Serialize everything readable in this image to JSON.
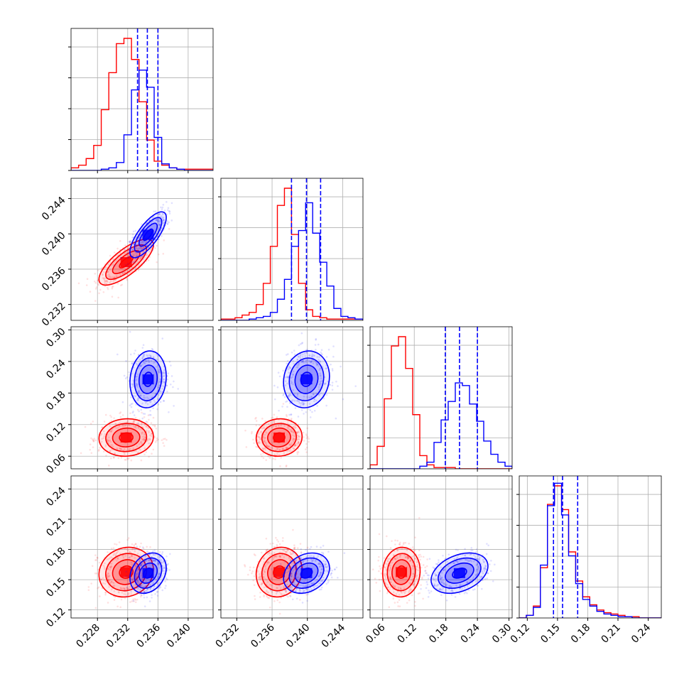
{
  "colors": {
    "series_a": "#ff0000",
    "series_b": "#0000ff"
  },
  "chart_data": {
    "type": "corner",
    "grid": true,
    "legend": "none",
    "parameters": [
      {
        "id": "p0",
        "range": [
          0.2245,
          0.2433
        ],
        "ticks": [
          0.228,
          0.232,
          0.236,
          0.24
        ],
        "tick_labels": [
          "0.228",
          "0.232",
          "0.236",
          "0.240"
        ],
        "tick_decimals": 3
      },
      {
        "id": "p1",
        "range": [
          0.2302,
          0.2463
        ],
        "ticks": [
          0.232,
          0.236,
          0.24,
          0.244
        ],
        "tick_labels": [
          "0.232",
          "0.236",
          "0.240",
          "0.244"
        ],
        "tick_decimals": 3
      },
      {
        "id": "p2",
        "range": [
          0.036,
          0.306
        ],
        "ticks": [
          0.06,
          0.12,
          0.18,
          0.24,
          0.3
        ],
        "tick_labels": [
          "0.06",
          "0.12",
          "0.18",
          "0.24",
          "0.30"
        ],
        "tick_decimals": 2
      },
      {
        "id": "p3",
        "range": [
          0.112,
          0.253
        ],
        "ticks": [
          0.12,
          0.15,
          0.18,
          0.21,
          0.24
        ],
        "tick_labels": [
          "0.12",
          "0.15",
          "0.18",
          "0.21",
          "0.24"
        ],
        "tick_decimals": 2
      }
    ],
    "series": [
      {
        "color": "#ff0000",
        "mean": [
          0.2318,
          0.2368,
          0.0955,
          0.1575
        ],
        "sd": [
          0.0018,
          0.0013,
          0.0178,
          0.0123
        ],
        "marginals": [
          {
            "bins": [
              0.2245,
              0.2255,
              0.2265,
              0.2275,
              0.2285,
              0.2295,
              0.2305,
              0.2315,
              0.2325,
              0.2335,
              0.2345,
              0.2355,
              0.2365,
              0.2375,
              0.2385,
              0.2395,
              0.2405,
              0.2415,
              0.2425,
              0.2435
            ],
            "counts": [
              0.02,
              0.04,
              0.09,
              0.19,
              0.46,
              0.74,
              0.96,
              1.0,
              0.84,
              0.52,
              0.23,
              0.07,
              0.04,
              0.02,
              0.01,
              0.01,
              0.01,
              0.01,
              0.01
            ]
          },
          {
            "bins": [
              0.2302,
              0.231,
              0.2318,
              0.2326,
              0.2334,
              0.2342,
              0.235,
              0.2358,
              0.2366,
              0.2374,
              0.2382,
              0.239,
              0.2398,
              0.2406,
              0.2414,
              0.2422,
              0.243,
              0.2438,
              0.2446,
              0.2454,
              0.2463
            ],
            "counts": [
              0.01,
              0.01,
              0.02,
              0.04,
              0.06,
              0.12,
              0.28,
              0.56,
              0.87,
              1.0,
              0.65,
              0.28,
              0.08,
              0.03,
              0.02,
              0.01,
              0.01,
              0.01,
              0.01,
              0.01
            ]
          },
          {
            "bins": [
              0.036,
              0.0495,
              0.063,
              0.0765,
              0.09,
              0.1035,
              0.117,
              0.1305,
              0.144,
              0.1575,
              0.171,
              0.1845,
              0.198,
              0.2115,
              0.225,
              0.2385,
              0.252,
              0.2655,
              0.279,
              0.2925,
              0.306
            ],
            "counts": [
              0.03,
              0.17,
              0.53,
              0.93,
              1.0,
              0.76,
              0.41,
              0.1,
              0.03,
              0.01,
              0.01,
              0.01,
              0.0,
              0.0,
              0.0,
              0.0,
              0.0,
              0.0,
              0.0,
              0.0
            ]
          },
          {
            "bins": [
              0.112,
              0.119,
              0.126,
              0.133,
              0.14,
              0.147,
              0.154,
              0.161,
              0.168,
              0.175,
              0.182,
              0.189,
              0.196,
              0.203,
              0.21,
              0.217,
              0.224,
              0.231,
              0.238,
              0.245,
              0.253
            ],
            "counts": [
              0.0,
              0.02,
              0.09,
              0.38,
              0.86,
              1.0,
              0.82,
              0.5,
              0.28,
              0.16,
              0.1,
              0.06,
              0.04,
              0.03,
              0.02,
              0.01,
              0.01,
              0.0,
              0.0,
              0.0
            ]
          }
        ]
      },
      {
        "color": "#0000ff",
        "mean": [
          0.2347,
          0.2399,
          0.206,
          0.1565
        ],
        "sd": [
          0.0012,
          0.0013,
          0.027,
          0.01
        ],
        "quantile_lines": [
          [
            0.2333,
            0.2346,
            0.236
          ],
          [
            0.2382,
            0.2399,
            0.2415
          ],
          [
            0.179,
            0.206,
            0.24
          ],
          [
            0.146,
            0.155,
            0.17
          ]
        ],
        "marginals": [
          {
            "bins": [
              0.2245,
              0.2255,
              0.2265,
              0.2275,
              0.2285,
              0.2295,
              0.2305,
              0.2315,
              0.2325,
              0.2335,
              0.2345,
              0.2355,
              0.2365,
              0.2375,
              0.2385,
              0.2395,
              0.2405,
              0.2415,
              0.2425,
              0.2435
            ],
            "counts": [
              0.0,
              0.0,
              0.0,
              0.0,
              0.01,
              0.02,
              0.06,
              0.27,
              0.61,
              0.76,
              0.63,
              0.25,
              0.05,
              0.02,
              0.01,
              0.0,
              0.0,
              0.0,
              0.0
            ]
          },
          {
            "bins": [
              0.2302,
              0.231,
              0.2318,
              0.2326,
              0.2334,
              0.2342,
              0.235,
              0.2358,
              0.2366,
              0.2374,
              0.2382,
              0.239,
              0.2398,
              0.2406,
              0.2414,
              0.2422,
              0.243,
              0.2438,
              0.2446,
              0.2454,
              0.2463
            ],
            "counts": [
              0.0,
              0.0,
              0.0,
              0.0,
              0.01,
              0.02,
              0.03,
              0.06,
              0.16,
              0.31,
              0.56,
              0.68,
              0.89,
              0.66,
              0.44,
              0.26,
              0.09,
              0.03,
              0.02,
              0.01
            ]
          },
          {
            "bins": [
              0.036,
              0.0495,
              0.063,
              0.0765,
              0.09,
              0.1035,
              0.117,
              0.1305,
              0.144,
              0.1575,
              0.171,
              0.1845,
              0.198,
              0.2115,
              0.225,
              0.2385,
              0.252,
              0.2655,
              0.279,
              0.2925,
              0.306
            ],
            "counts": [
              0.0,
              0.0,
              0.0,
              0.0,
              0.0,
              0.0,
              0.0,
              0.02,
              0.05,
              0.2,
              0.37,
              0.51,
              0.65,
              0.63,
              0.49,
              0.36,
              0.21,
              0.11,
              0.05,
              0.02
            ]
          },
          {
            "bins": [
              0.112,
              0.119,
              0.126,
              0.133,
              0.14,
              0.147,
              0.154,
              0.161,
              0.168,
              0.175,
              0.182,
              0.189,
              0.196,
              0.203,
              0.21,
              0.217,
              0.224,
              0.231,
              0.238,
              0.245,
              0.253
            ],
            "counts": [
              0.0,
              0.02,
              0.08,
              0.4,
              0.85,
              1.02,
              0.78,
              0.47,
              0.26,
              0.14,
              0.09,
              0.05,
              0.03,
              0.02,
              0.01,
              0.01,
              0.0,
              0.0,
              0.0,
              0.0
            ]
          }
        ]
      }
    ],
    "correlations": [
      {
        "pair": [
          0,
          1
        ],
        "red": 0.75,
        "blue": 0.75
      },
      {
        "pair": [
          0,
          2
        ],
        "red": 0.05,
        "blue": 0.1
      },
      {
        "pair": [
          1,
          2
        ],
        "red": 0.05,
        "blue": 0.1
      },
      {
        "pair": [
          0,
          3
        ],
        "red": 0.1,
        "blue": 0.25
      },
      {
        "pair": [
          1,
          3
        ],
        "red": 0.1,
        "blue": 0.25
      },
      {
        "pair": [
          2,
          3
        ],
        "red": 0.05,
        "blue": 0.35
      }
    ],
    "contour_sigma_levels": [
      0.5,
      1.0,
      1.5,
      2.0
    ]
  }
}
